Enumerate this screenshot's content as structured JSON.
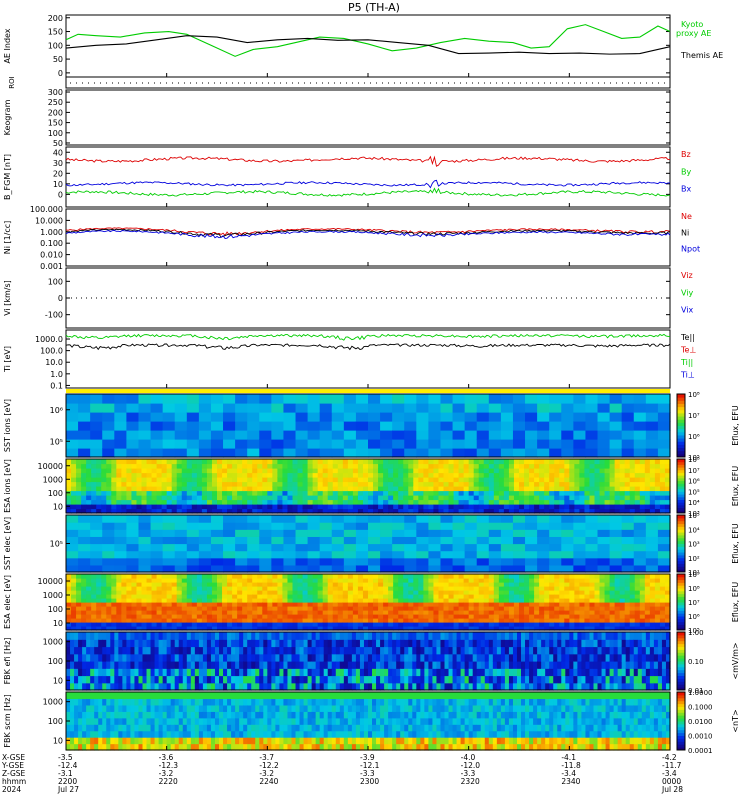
{
  "title": "P5 (TH-A)",
  "colors": {
    "green": "#00cc00",
    "red": "#dd0000",
    "blue": "#0000dd",
    "black": "#000000",
    "yellow": "#ffee00"
  },
  "chart_data": [
    {
      "type": "line",
      "id": "ae",
      "ylabel": "AE Index",
      "ylim": [
        -15,
        210
      ],
      "yticks": [
        "0",
        "50",
        "100",
        "150",
        "200"
      ],
      "legend": [
        "Kyoto",
        "proxy AE",
        "Themis AE"
      ],
      "series": [
        {
          "name": "Kyoto proxy AE",
          "color": "#00cc00",
          "x": [
            0,
            0.02,
            0.05,
            0.09,
            0.13,
            0.17,
            0.2,
            0.24,
            0.28,
            0.31,
            0.35,
            0.38,
            0.42,
            0.46,
            0.5,
            0.54,
            0.58,
            0.62,
            0.66,
            0.7,
            0.74,
            0.77,
            0.8,
            0.83,
            0.86,
            0.89,
            0.92,
            0.95,
            0.98,
            1.0
          ],
          "y": [
            120,
            140,
            135,
            130,
            145,
            150,
            140,
            100,
            60,
            85,
            95,
            110,
            130,
            125,
            105,
            80,
            90,
            110,
            125,
            115,
            110,
            90,
            95,
            160,
            175,
            150,
            125,
            130,
            170,
            150
          ]
        },
        {
          "name": "Themis AE",
          "color": "#000000",
          "x": [
            0,
            0.05,
            0.1,
            0.15,
            0.2,
            0.25,
            0.3,
            0.35,
            0.4,
            0.45,
            0.5,
            0.55,
            0.6,
            0.65,
            0.7,
            0.75,
            0.8,
            0.85,
            0.9,
            0.95,
            1.0
          ],
          "y": [
            90,
            100,
            105,
            120,
            135,
            130,
            110,
            120,
            125,
            118,
            120,
            110,
            100,
            70,
            72,
            75,
            70,
            72,
            68,
            70,
            95
          ]
        }
      ]
    },
    {
      "type": "line",
      "id": "roi",
      "ylabel": "ROI",
      "series": []
    },
    {
      "type": "line",
      "id": "keogram",
      "ylabel": "Keogram",
      "ylim": [
        40,
        310
      ],
      "yticks": [
        "50",
        "100",
        "150",
        "200",
        "250",
        "300"
      ],
      "series": []
    },
    {
      "type": "line",
      "id": "bfgm",
      "ylabel": "B_FGM [nT]",
      "ylim": [
        -12,
        45
      ],
      "yticks": [
        "0",
        "10",
        "20",
        "30",
        "40"
      ],
      "legend": [
        "Bz",
        "By",
        "Bx"
      ],
      "series": [
        {
          "name": "Bz",
          "color": "#dd0000",
          "base": 33,
          "amp": 2.5,
          "seed": 3
        },
        {
          "name": "By",
          "color": "#00cc00",
          "base": 1,
          "amp": 2.5,
          "seed": 7
        },
        {
          "name": "Bx",
          "color": "#0000dd",
          "base": 10,
          "amp": 2,
          "seed": 11
        }
      ]
    },
    {
      "type": "line",
      "id": "density",
      "ylabel": "Ni [1/cc]",
      "scale": "log",
      "ylim": [
        0.001,
        100
      ],
      "yticks": [
        "0.001",
        "0.010",
        "0.100",
        "1.000",
        "10.000",
        "100.000"
      ],
      "legend": [
        "Ne",
        "Ni",
        "Npot"
      ],
      "series": [
        {
          "name": "Ne",
          "color": "#dd0000",
          "base": 1.3,
          "seed": 5
        },
        {
          "name": "Ni",
          "color": "#000000",
          "base": 1.0,
          "seed": 6
        },
        {
          "name": "Npot",
          "color": "#0000dd",
          "base": 0.75,
          "seed": 9
        }
      ]
    },
    {
      "type": "line",
      "id": "velocity",
      "ylabel": "Vi [km/s]",
      "ylim": [
        -180,
        180
      ],
      "yticks": [
        "-100",
        "0",
        "100"
      ],
      "legend": [
        "Viz",
        "Viy",
        "Vix"
      ],
      "series": []
    },
    {
      "type": "line",
      "id": "temperature",
      "ylabel": "Ti [eV]",
      "scale": "log",
      "ylim": [
        0.06,
        6000
      ],
      "yticks": [
        "0.1",
        "1.0",
        "10.0",
        "100.0",
        "1000.0"
      ],
      "legend": [
        "Te||",
        "Te⊥",
        "Ti||",
        "Ti⊥"
      ],
      "series": [
        {
          "name": "Ti||",
          "color": "#00cc00",
          "base": 2000,
          "seed": 12
        },
        {
          "name": "Te||",
          "color": "#000000",
          "base": 300,
          "seed": 14
        }
      ]
    },
    {
      "type": "heatmap",
      "id": "sst-i",
      "ylabel": "SST ions [eV]",
      "yticks": [
        "10⁵",
        "10⁶"
      ],
      "colorbar": "Eflux, EFU",
      "cticks": [
        "10⁵",
        "10⁶",
        "10⁷",
        "10⁸"
      ]
    },
    {
      "type": "heatmap",
      "id": "esa-i",
      "ylabel": "ESA ions [eV]",
      "yticks": [
        "10",
        "100",
        "1000",
        "10000"
      ],
      "colorbar": "Eflux, EFU",
      "cticks": [
        "10³",
        "10⁴",
        "10⁵",
        "10⁶",
        "10⁷",
        "10⁸"
      ]
    },
    {
      "type": "heatmap",
      "id": "sst-e",
      "ylabel": "SST elec [eV]",
      "yticks": [
        "10⁵"
      ],
      "colorbar": "Eflux, EFU",
      "cticks": [
        "10¹",
        "10²",
        "10³",
        "10⁴",
        "10⁵"
      ]
    },
    {
      "type": "heatmap",
      "id": "esa-e",
      "ylabel": "ESA elec [eV]",
      "yticks": [
        "10",
        "100",
        "1000",
        "10000"
      ],
      "colorbar": "Eflux, EFU",
      "cticks": [
        "10⁵",
        "10⁶",
        "10⁷",
        "10⁸",
        "10⁹"
      ]
    },
    {
      "type": "heatmap",
      "id": "fbk-e",
      "ylabel": "FBK efi [Hz]",
      "yticks": [
        "10",
        "100",
        "1000"
      ],
      "colorbar": "<mV/m>",
      "cticks": [
        "0.01",
        "0.10",
        "1.00"
      ]
    },
    {
      "type": "heatmap",
      "id": "fbk-b",
      "ylabel": "FBK scm [Hz]",
      "yticks": [
        "10",
        "100",
        "1000"
      ],
      "colorbar": "<nT>",
      "cticks": [
        "0.0001",
        "0.0010",
        "0.0100",
        "0.1000",
        "1.0000"
      ]
    }
  ],
  "x_axis": {
    "rows": [
      {
        "label": "X-GSE",
        "values": [
          "-3.5",
          "-3.6",
          "-3.7",
          "-3.9",
          "-4.0",
          "-4.1",
          "-4.2"
        ]
      },
      {
        "label": "Y-GSE",
        "values": [
          "-12.4",
          "-12.3",
          "-12.2",
          "-12.1",
          "-12.0",
          "-11.8",
          "-11.7"
        ]
      },
      {
        "label": "Z-GSE",
        "values": [
          "-3.1",
          "-3.2",
          "-3.2",
          "-3.3",
          "-3.3",
          "-3.4",
          "-3.4"
        ]
      },
      {
        "label": "hhmm",
        "values": [
          "2200",
          "2220",
          "2240",
          "2300",
          "2320",
          "2340",
          "0000"
        ]
      },
      {
        "label": "2024",
        "values": [
          "Jul 27",
          "",
          "",
          "",
          "",
          "",
          "Jul 28"
        ]
      }
    ]
  }
}
